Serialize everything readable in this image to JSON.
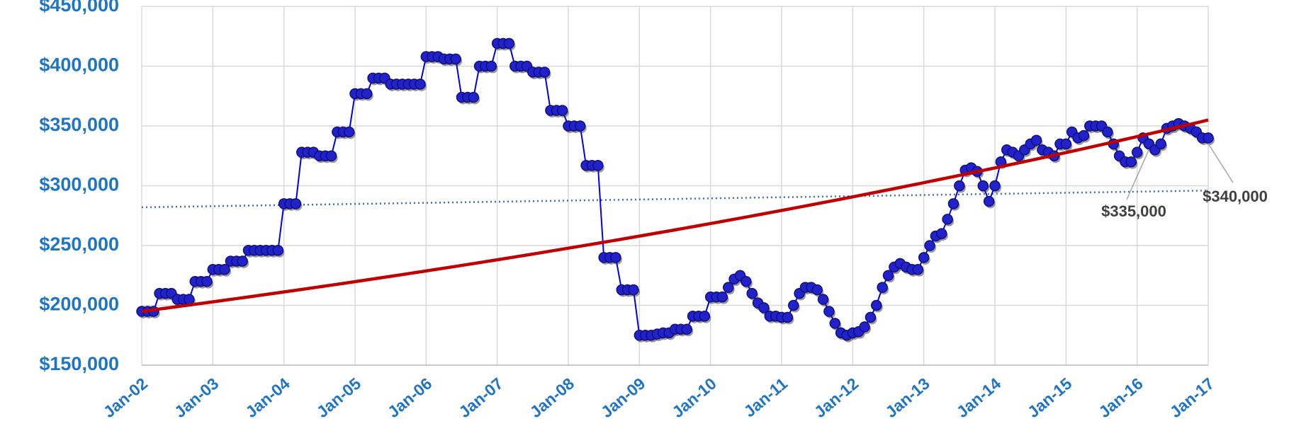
{
  "chart_data": {
    "type": "line",
    "categories": [
      "Jan-02",
      null,
      null,
      null,
      null,
      null,
      null,
      null,
      null,
      null,
      null,
      null,
      "Jan-03",
      null,
      null,
      null,
      null,
      null,
      null,
      null,
      null,
      null,
      null,
      null,
      "Jan-04",
      null,
      null,
      null,
      null,
      null,
      null,
      null,
      null,
      null,
      null,
      null,
      "Jan-05",
      null,
      null,
      null,
      null,
      null,
      null,
      null,
      null,
      null,
      null,
      null,
      "Jan-06",
      null,
      null,
      null,
      null,
      null,
      null,
      null,
      null,
      null,
      null,
      null,
      "Jan-07",
      null,
      null,
      null,
      null,
      null,
      null,
      null,
      null,
      null,
      null,
      null,
      "Jan-08",
      null,
      null,
      null,
      null,
      null,
      null,
      null,
      null,
      null,
      null,
      null,
      "Jan-09",
      null,
      null,
      null,
      null,
      null,
      null,
      null,
      null,
      null,
      null,
      null,
      "Jan-10",
      null,
      null,
      null,
      null,
      null,
      null,
      null,
      null,
      null,
      null,
      null,
      "Jan-11",
      null,
      null,
      null,
      null,
      null,
      null,
      null,
      null,
      null,
      null,
      null,
      "Jan-12",
      null,
      null,
      null,
      null,
      null,
      null,
      null,
      null,
      null,
      null,
      null,
      "Jan-13",
      null,
      null,
      null,
      null,
      null,
      null,
      null,
      null,
      null,
      null,
      null,
      "Jan-14",
      null,
      null,
      null,
      null,
      null,
      null,
      null,
      null,
      null,
      null,
      null,
      "Jan-15",
      null,
      null,
      null,
      null,
      null,
      null,
      null,
      null,
      null,
      null,
      null,
      "Jan-16",
      null,
      null,
      null,
      null,
      null,
      null,
      null,
      null,
      null,
      null,
      null,
      "Jan-17"
    ],
    "values": [
      195000,
      195000,
      195000,
      210000,
      210000,
      210000,
      205000,
      205000,
      205000,
      220000,
      220000,
      220000,
      230000,
      230000,
      230000,
      237000,
      237000,
      237000,
      246000,
      246000,
      246000,
      246000,
      246000,
      246000,
      285000,
      285000,
      285000,
      328000,
      328000,
      328000,
      325000,
      325000,
      325000,
      345000,
      345000,
      345000,
      377000,
      377000,
      377000,
      390000,
      390000,
      390000,
      385000,
      385000,
      385000,
      385000,
      385000,
      385000,
      408000,
      408000,
      408000,
      406000,
      406000,
      406000,
      374000,
      374000,
      374000,
      400000,
      400000,
      400000,
      419000,
      419000,
      419000,
      400000,
      400000,
      400000,
      395000,
      395000,
      395000,
      363000,
      363000,
      363000,
      350000,
      350000,
      350000,
      317000,
      317000,
      317000,
      240000,
      240000,
      240000,
      213000,
      213000,
      213000,
      175000,
      175000,
      175000,
      176000,
      177000,
      177000,
      180000,
      180000,
      180000,
      191000,
      191000,
      191000,
      207000,
      207000,
      207000,
      215000,
      222000,
      225000,
      220000,
      210000,
      202000,
      198000,
      191000,
      191000,
      190000,
      190000,
      200000,
      210000,
      215000,
      215000,
      213000,
      205000,
      195000,
      185000,
      177000,
      175000,
      177000,
      178000,
      182000,
      190000,
      200000,
      215000,
      225000,
      232000,
      235000,
      232000,
      230000,
      230000,
      240000,
      250000,
      258000,
      260000,
      272000,
      285000,
      300000,
      313000,
      315000,
      312000,
      300000,
      287000,
      300000,
      320000,
      330000,
      328000,
      325000,
      330000,
      335000,
      338000,
      330000,
      328000,
      325000,
      335000,
      335000,
      345000,
      340000,
      342000,
      350000,
      350000,
      350000,
      345000,
      335000,
      325000,
      320000,
      320000,
      328000,
      340000,
      335000,
      330000,
      335000,
      348000,
      350000,
      352000,
      350000,
      348000,
      345000,
      340000,
      340000
    ],
    "color": "#0000e6",
    "marker_color": "#2222cc",
    "trendline": {
      "type": "exponential",
      "start": 195000,
      "end": 355000,
      "color": "#c00000"
    },
    "average_line": {
      "start": 282000,
      "end": 296000,
      "color": "#3b6db5"
    },
    "annotations": [
      {
        "text": "$335,000",
        "x": 170
      },
      {
        "text": "$340,000",
        "x": 180
      }
    ],
    "ylim": [
      150000,
      450000
    ],
    "yticks": [
      {
        "value": 150000,
        "label": "$150,000"
      },
      {
        "value": 200000,
        "label": "$200,000"
      },
      {
        "value": 250000,
        "label": "$250,000"
      },
      {
        "value": 300000,
        "label": "$300,000"
      },
      {
        "value": 350000,
        "label": "$350,000"
      },
      {
        "value": 400000,
        "label": "$400,000"
      },
      {
        "value": 450000,
        "label": "$450,000"
      }
    ],
    "grid": true
  }
}
